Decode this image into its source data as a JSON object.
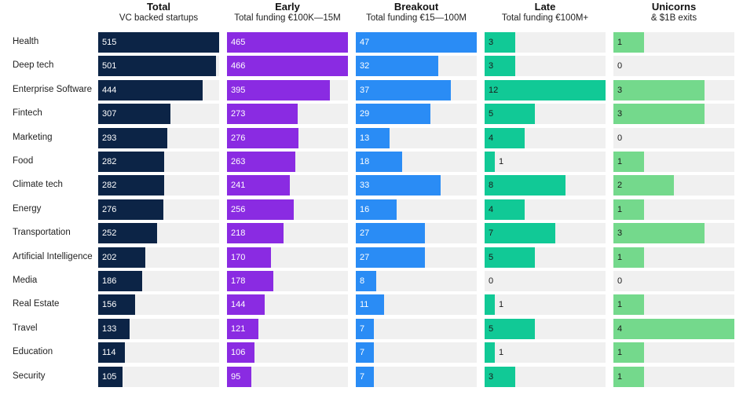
{
  "chart_data": {
    "type": "bar",
    "categories": [
      "Health",
      "Deep tech",
      "Enterprise Software",
      "Fintech",
      "Marketing",
      "Food",
      "Climate tech",
      "Energy",
      "Transportation",
      "Artificial Intelligence",
      "Media",
      "Real Estate",
      "Travel",
      "Education",
      "Security"
    ],
    "series": [
      {
        "name": "Total",
        "subtitle": "VC backed startups",
        "color": "#0c2446",
        "max": 515,
        "values": [
          515,
          501,
          444,
          307,
          293,
          282,
          282,
          276,
          252,
          202,
          186,
          156,
          133,
          114,
          105
        ]
      },
      {
        "name": "Early",
        "subtitle": "Total funding €100K—15M",
        "color": "#8a2be2",
        "max": 466,
        "values": [
          465,
          466,
          395,
          273,
          276,
          263,
          241,
          256,
          218,
          170,
          178,
          144,
          121,
          106,
          95
        ]
      },
      {
        "name": "Breakout",
        "subtitle": "Total funding €15—100M",
        "color": "#2a8cf5",
        "max": 47,
        "values": [
          47,
          32,
          37,
          29,
          13,
          18,
          33,
          16,
          27,
          27,
          8,
          11,
          7,
          7,
          7
        ]
      },
      {
        "name": "Late",
        "subtitle": "Total funding €100M+",
        "color": "#11c996",
        "max": 12,
        "values": [
          3,
          3,
          12,
          5,
          4,
          1,
          8,
          4,
          7,
          5,
          0,
          1,
          5,
          1,
          3
        ]
      },
      {
        "name": "Unicorns",
        "subtitle": "& $1B exits",
        "color": "#74d98c",
        "max": 4,
        "values": [
          1,
          0,
          3,
          3,
          0,
          1,
          2,
          1,
          3,
          1,
          0,
          1,
          4,
          1,
          1
        ]
      }
    ],
    "legend": "none",
    "grid": false
  }
}
